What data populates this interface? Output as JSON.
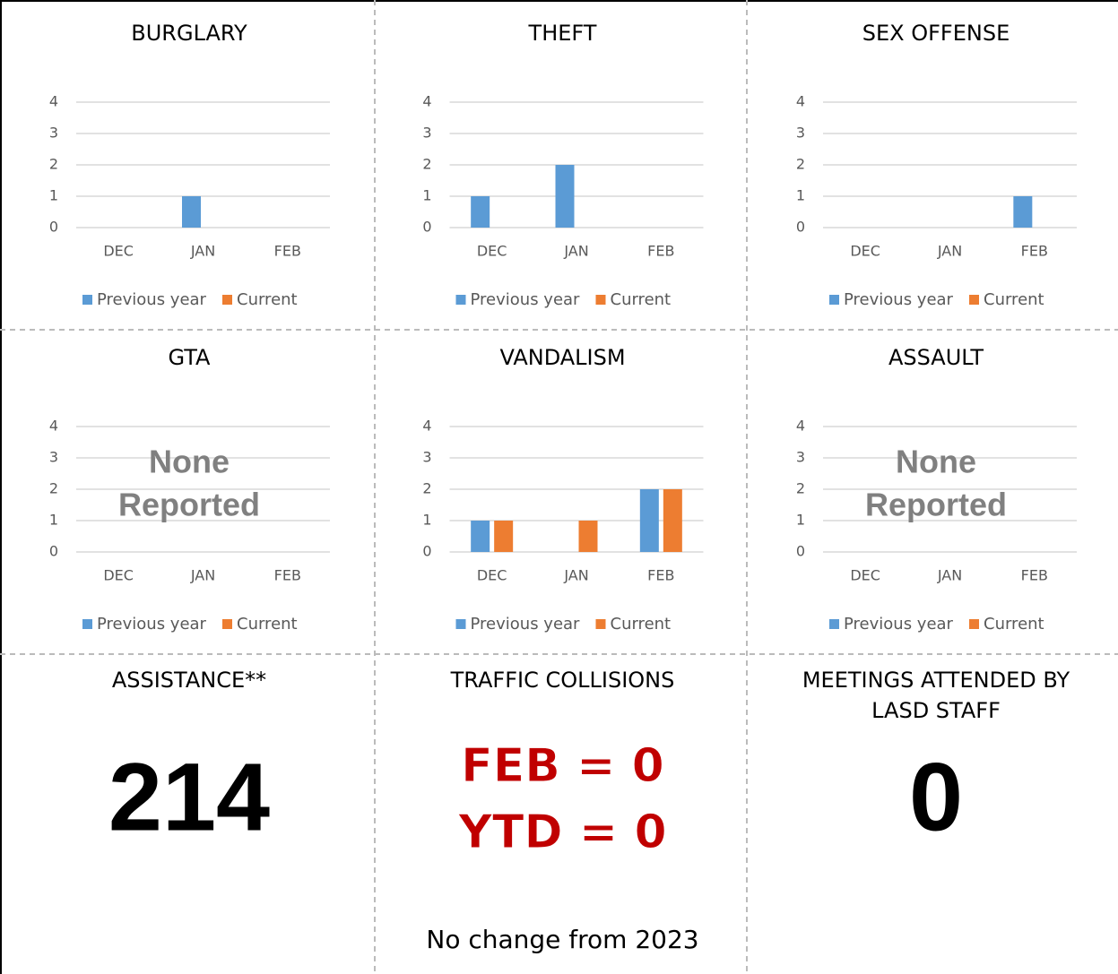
{
  "chart_data": [
    {
      "type": "bar",
      "title": "BURGLARY",
      "categories": [
        "DEC",
        "JAN",
        "FEB"
      ],
      "series": [
        {
          "name": "Previous year",
          "color": "#5b9bd5",
          "values": [
            0,
            1,
            0
          ]
        },
        {
          "name": "Current",
          "color": "#ed7d31",
          "values": [
            0,
            0,
            0
          ]
        }
      ],
      "ylim": [
        0,
        4
      ],
      "yticks": [
        0,
        1,
        2,
        3,
        4
      ],
      "grid": true
    },
    {
      "type": "bar",
      "title": "THEFT",
      "categories": [
        "DEC",
        "JAN",
        "FEB"
      ],
      "series": [
        {
          "name": "Previous year",
          "color": "#5b9bd5",
          "values": [
            1,
            2,
            0
          ]
        },
        {
          "name": "Current",
          "color": "#ed7d31",
          "values": [
            0,
            0,
            0
          ]
        }
      ],
      "ylim": [
        0,
        4
      ],
      "yticks": [
        0,
        1,
        2,
        3,
        4
      ],
      "grid": true
    },
    {
      "type": "bar",
      "title": "SEX OFFENSE",
      "categories": [
        "DEC",
        "JAN",
        "FEB"
      ],
      "series": [
        {
          "name": "Previous year",
          "color": "#5b9bd5",
          "values": [
            0,
            0,
            1
          ]
        },
        {
          "name": "Current",
          "color": "#ed7d31",
          "values": [
            0,
            0,
            0
          ]
        }
      ],
      "ylim": [
        0,
        4
      ],
      "yticks": [
        0,
        1,
        2,
        3,
        4
      ],
      "grid": true
    },
    {
      "type": "bar",
      "title": "GTA",
      "categories": [
        "DEC",
        "JAN",
        "FEB"
      ],
      "series": [
        {
          "name": "Previous year",
          "color": "#5b9bd5",
          "values": [
            0,
            0,
            0
          ]
        },
        {
          "name": "Current",
          "color": "#ed7d31",
          "values": [
            0,
            0,
            0
          ]
        }
      ],
      "ylim": [
        0,
        4
      ],
      "yticks": [
        0,
        1,
        2,
        3,
        4
      ],
      "grid": true,
      "annotation": [
        "None",
        "Reported"
      ]
    },
    {
      "type": "bar",
      "title": "VANDALISM",
      "categories": [
        "DEC",
        "JAN",
        "FEB"
      ],
      "series": [
        {
          "name": "Previous year",
          "color": "#5b9bd5",
          "values": [
            1,
            0,
            2
          ]
        },
        {
          "name": "Current",
          "color": "#ed7d31",
          "values": [
            1,
            1,
            2
          ]
        }
      ],
      "ylim": [
        0,
        4
      ],
      "yticks": [
        0,
        1,
        2,
        3,
        4
      ],
      "grid": true
    },
    {
      "type": "bar",
      "title": "ASSAULT",
      "categories": [
        "DEC",
        "JAN",
        "FEB"
      ],
      "series": [
        {
          "name": "Previous year",
          "color": "#5b9bd5",
          "values": [
            0,
            0,
            0
          ]
        },
        {
          "name": "Current",
          "color": "#ed7d31",
          "values": [
            0,
            0,
            0
          ]
        }
      ],
      "ylim": [
        0,
        4
      ],
      "yticks": [
        0,
        1,
        2,
        3,
        4
      ],
      "grid": true,
      "annotation": [
        "None",
        "Reported"
      ]
    }
  ],
  "stats": [
    {
      "title_lines": [
        "ASSISTANCE**"
      ],
      "value": 214
    },
    {
      "title_lines": [
        "TRAFFIC COLLISIONS"
      ],
      "lines": [
        "FEB = 0",
        "YTD = 0"
      ],
      "note": "No change from 2023"
    },
    {
      "title_lines": [
        "MEETINGS ATTENDED BY",
        "LASD STAFF"
      ],
      "value": 0
    }
  ]
}
